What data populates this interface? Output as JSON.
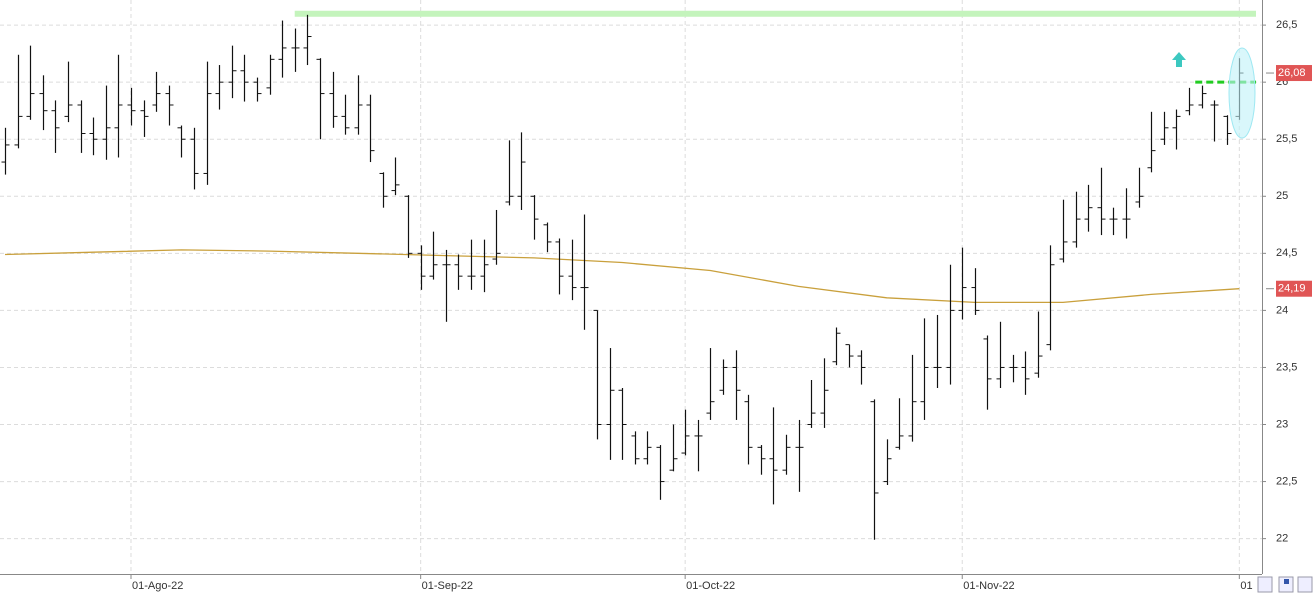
{
  "chart_data": {
    "type": "ohlc",
    "categories": [
      null,
      null,
      null,
      null,
      null,
      null,
      null,
      null,
      null,
      null,
      "01-Ago-22",
      null,
      null,
      null,
      null,
      null,
      null,
      null,
      null,
      null,
      null,
      null,
      null,
      null,
      null,
      null,
      null,
      null,
      null,
      null,
      null,
      null,
      null,
      "01-Sep-22",
      null,
      null,
      null,
      null,
      null,
      null,
      null,
      null,
      null,
      null,
      null,
      null,
      null,
      null,
      null,
      null,
      null,
      null,
      null,
      null,
      "01-Oct-22",
      null,
      null,
      null,
      null,
      null,
      null,
      null,
      null,
      null,
      null,
      null,
      null,
      null,
      null,
      null,
      null,
      null,
      null,
      null,
      null,
      null,
      "01-Nov-22",
      null,
      null,
      null,
      null,
      null,
      null,
      null,
      null,
      null,
      null,
      null,
      null,
      null,
      null,
      null,
      null,
      null,
      null,
      null,
      null,
      null,
      "01"
    ],
    "open": [
      25.3,
      25.45,
      25.7,
      25.9,
      25.75,
      25.7,
      25.8,
      25.55,
      25.5,
      25.6,
      25.8,
      25.75,
      25.8,
      25.9,
      25.6,
      25.5,
      25.2,
      25.9,
      26.0,
      26.1,
      26.0,
      25.95,
      26.2,
      26.3,
      26.3,
      26.2,
      25.9,
      25.7,
      25.6,
      25.8,
      25.2,
      25.05,
      25.0,
      24.5,
      24.3,
      24.4,
      24.4,
      24.3,
      24.3,
      24.45,
      24.95,
      25.0,
      25.0,
      24.75,
      24.6,
      24.3,
      24.2,
      24.0,
      23.0,
      23.3,
      22.9,
      22.7,
      22.8,
      22.6,
      22.75,
      22.9,
      23.1,
      23.3,
      23.5,
      23.2,
      22.8,
      22.7,
      22.6,
      22.8,
      23.0,
      23.1,
      23.55,
      23.7,
      23.6,
      23.2,
      22.5,
      22.8,
      22.9,
      23.2,
      23.5,
      23.5,
      24.0,
      24.2,
      23.75,
      23.4,
      23.5,
      23.5,
      23.45,
      23.7,
      24.45,
      24.6,
      24.8,
      24.9,
      24.8,
      24.8,
      24.95,
      25.25,
      25.5,
      25.6,
      25.75,
      25.8,
      25.8,
      25.7,
      25.7
    ],
    "high": [
      25.6,
      26.24,
      26.32,
      26.06,
      25.84,
      26.18,
      25.84,
      25.69,
      25.97,
      26.24,
      25.95,
      25.84,
      26.09,
      25.97,
      25.62,
      25.6,
      26.18,
      26.15,
      26.32,
      26.24,
      26.04,
      26.24,
      26.54,
      26.47,
      26.59,
      26.21,
      26.09,
      25.89,
      26.06,
      25.89,
      25.21,
      25.34,
      25.01,
      24.57,
      24.69,
      24.53,
      24.49,
      24.62,
      24.62,
      24.88,
      25.49,
      25.56,
      25.01,
      24.77,
      24.63,
      24.62,
      24.84,
      24.0,
      23.67,
      23.32,
      22.94,
      22.94,
      22.82,
      23.0,
      23.13,
      23.04,
      23.67,
      23.57,
      23.65,
      23.26,
      22.82,
      23.15,
      22.91,
      23.04,
      23.39,
      23.58,
      23.85,
      23.7,
      23.65,
      23.22,
      22.87,
      23.23,
      23.61,
      23.93,
      23.96,
      24.4,
      24.55,
      24.37,
      23.78,
      23.9,
      23.61,
      23.64,
      23.99,
      24.57,
      24.97,
      25.04,
      25.1,
      25.25,
      24.9,
      25.07,
      25.25,
      25.74,
      25.74,
      25.76,
      25.95,
      25.97,
      25.84,
      25.71,
      26.21
    ],
    "low": [
      25.19,
      25.42,
      25.67,
      25.58,
      25.38,
      25.65,
      25.38,
      25.36,
      25.32,
      25.34,
      25.62,
      25.52,
      25.74,
      25.62,
      25.34,
      25.06,
      25.1,
      25.76,
      25.86,
      25.83,
      25.83,
      25.89,
      26.04,
      26.09,
      26.15,
      25.5,
      25.6,
      25.54,
      25.54,
      25.3,
      24.9,
      25.01,
      24.46,
      24.18,
      24.27,
      23.9,
      24.18,
      24.18,
      24.16,
      24.4,
      24.92,
      24.88,
      24.62,
      24.51,
      24.14,
      24.09,
      23.83,
      22.87,
      22.69,
      22.69,
      22.65,
      22.65,
      22.34,
      22.59,
      22.73,
      22.59,
      23.04,
      23.26,
      23.04,
      22.65,
      22.56,
      22.3,
      22.56,
      22.41,
      22.97,
      22.97,
      23.52,
      23.5,
      23.35,
      21.99,
      22.47,
      22.78,
      22.85,
      23.04,
      23.32,
      23.35,
      23.92,
      23.96,
      23.13,
      23.32,
      23.37,
      23.26,
      23.41,
      23.65,
      24.42,
      24.55,
      24.69,
      24.66,
      24.66,
      24.63,
      24.9,
      25.21,
      25.45,
      25.41,
      25.71,
      25.77,
      25.48,
      25.45,
      25.67
    ],
    "close": [
      25.45,
      25.7,
      25.9,
      25.75,
      25.6,
      25.8,
      25.55,
      25.5,
      25.6,
      25.8,
      25.75,
      25.7,
      25.9,
      25.8,
      25.5,
      25.2,
      25.9,
      26.0,
      26.1,
      26.0,
      25.9,
      26.2,
      26.3,
      26.3,
      26.4,
      25.9,
      25.7,
      25.6,
      25.8,
      25.4,
      25.0,
      25.1,
      24.5,
      24.3,
      24.4,
      24.4,
      24.3,
      24.3,
      24.4,
      24.5,
      25.0,
      25.3,
      24.8,
      24.6,
      24.3,
      24.2,
      24.2,
      23.0,
      23.3,
      23.0,
      22.7,
      22.8,
      22.5,
      22.7,
      22.9,
      22.9,
      23.2,
      23.5,
      23.3,
      22.8,
      22.7,
      22.6,
      22.8,
      22.8,
      23.1,
      23.3,
      23.8,
      23.6,
      23.5,
      22.4,
      22.7,
      22.9,
      23.2,
      23.5,
      23.5,
      24.0,
      24.2,
      24.0,
      23.4,
      23.5,
      23.5,
      23.4,
      23.6,
      24.4,
      24.6,
      24.8,
      24.9,
      24.8,
      24.8,
      24.8,
      25.0,
      25.4,
      25.6,
      25.7,
      25.8,
      25.9,
      25.8,
      25.55,
      26.08
    ],
    "close_label": "26,08",
    "bar_color": "#111111",
    "ma": {
      "x": [
        0,
        7,
        14,
        21,
        28,
        35,
        42,
        49,
        56,
        63,
        70,
        77,
        84,
        91,
        98
      ],
      "values": [
        24.49,
        24.51,
        24.53,
        24.52,
        24.5,
        24.48,
        24.46,
        24.42,
        24.35,
        24.21,
        24.11,
        24.07,
        24.07,
        24.14,
        24.19
      ],
      "color": "#c9a03c",
      "label": "24,19"
    },
    "hlines": [
      {
        "value": 26.6,
        "from": 23,
        "color": "#c4f4bc",
        "dashed": false
      },
      {
        "value": 26.0,
        "from": 94.5,
        "color": "#22cc22",
        "dashed": true
      }
    ],
    "label_color": "#e05555",
    "xlim": [
      -0.4,
      99.8
    ],
    "ylim": [
      21.69,
      26.72
    ],
    "yticks": [
      22,
      {
        "value": 22.5,
        "label": "22,5"
      },
      23,
      {
        "value": 23.5,
        "label": "23,5"
      },
      24,
      {
        "value": 24.5,
        "label": "24,5"
      },
      25,
      {
        "value": 25.5,
        "label": "25,5"
      },
      26,
      {
        "value": 26.5,
        "label": "26,5"
      }
    ],
    "grid": true
  }
}
